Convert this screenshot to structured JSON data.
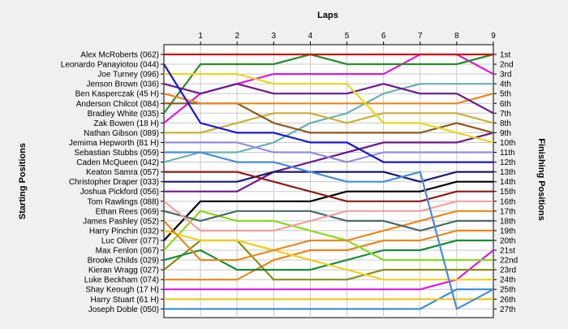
{
  "chart_data": {
    "type": "line",
    "title": "Laps",
    "ylabel_left": "Starting Positions",
    "ylabel_right": "Finishing Positions",
    "x": [
      0,
      1,
      2,
      3,
      4,
      5,
      6,
      7,
      8,
      9
    ],
    "x_tick_labels": [
      "1",
      "2",
      "3",
      "4",
      "5",
      "6",
      "7",
      "8",
      "9"
    ],
    "ylim": [
      1,
      27
    ],
    "y_inverted": true,
    "grid": true,
    "finishing_positions": [
      "1st",
      "2nd",
      "3rd",
      "4th",
      "5th",
      "6th",
      "7th",
      "8th",
      "9th",
      "10th",
      "11th",
      "12th",
      "13th",
      "14th",
      "15th",
      "16th",
      "17th",
      "18th",
      "19th",
      "20th",
      "21st",
      "22nd",
      "23rd",
      "24th",
      "25th",
      "26th",
      "27th"
    ],
    "series": [
      {
        "name": "Alex McRoberts (062)",
        "color": "#cc1111",
        "values": [
          1,
          1,
          1,
          1,
          1,
          1,
          1,
          1,
          1,
          1
        ]
      },
      {
        "name": "Leonardo Panayiotou (044)",
        "color": "#1a1acc",
        "values": [
          2,
          8,
          9,
          9,
          10,
          10,
          12,
          12,
          12,
          12
        ]
      },
      {
        "name": "Joe Turney (096)",
        "color": "#e8d81c",
        "values": [
          3,
          3,
          3,
          4,
          4,
          4,
          8,
          8,
          9,
          10
        ]
      },
      {
        "name": "Jenson Brown (036)",
        "color": "#6a1a8c",
        "values": [
          4,
          5,
          4,
          5,
          5,
          5,
          4,
          5,
          5,
          7
        ]
      },
      {
        "name": "Ben Kasperczak (45 H)",
        "color": "#e8881c",
        "values": [
          5,
          6,
          6,
          6,
          6,
          6,
          6,
          6,
          6,
          5
        ]
      },
      {
        "name": "Anderson Chilcot (084)",
        "color": "#8c5a1a",
        "values": [
          6,
          6,
          6,
          8,
          9,
          9,
          9,
          9,
          8,
          9
        ]
      },
      {
        "name": "Bradley White (035)",
        "color": "#2a8c2a",
        "values": [
          7,
          2,
          2,
          2,
          1,
          2,
          2,
          2,
          2,
          1
        ]
      },
      {
        "name": "Zak Bowen (18 H)",
        "color": "#d81cd8",
        "values": [
          8,
          5,
          4,
          3,
          3,
          3,
          3,
          1,
          1,
          3
        ]
      },
      {
        "name": "Nathan Gibson (089)",
        "color": "#c8b038",
        "values": [
          9,
          9,
          8,
          7,
          7,
          8,
          7,
          7,
          7,
          8
        ]
      },
      {
        "name": "Jemima Hepworth (81 H)",
        "color": "#9090d8",
        "values": [
          10,
          10,
          10,
          11,
          11,
          12,
          11,
          11,
          11,
          11
        ]
      },
      {
        "name": "Sebastian Stubbs (059)",
        "color": "#4a8cd8",
        "values": [
          11,
          11,
          12,
          12,
          13,
          14,
          14,
          13,
          27,
          25
        ]
      },
      {
        "name": "Caden McQueen (042)",
        "color": "#6ab0b0",
        "values": [
          12,
          11,
          11,
          10,
          8,
          7,
          5,
          4,
          4,
          4
        ]
      },
      {
        "name": "Keaton Samra (057)",
        "color": "#8c1a1a",
        "values": [
          13,
          13,
          13,
          14,
          15,
          16,
          16,
          16,
          15,
          15
        ]
      },
      {
        "name": "Christopher Draper (033)",
        "color": "#1a1a6c",
        "values": [
          14,
          14,
          14,
          13,
          13,
          13,
          13,
          14,
          13,
          13
        ]
      },
      {
        "name": "Joshua Pickford (056)",
        "color": "#6a1a8c",
        "values": [
          15,
          15,
          15,
          13,
          12,
          11,
          10,
          10,
          10,
          9
        ]
      },
      {
        "name": "Tom Rawlings (088)",
        "color": "#f0a0a0",
        "values": [
          16,
          19,
          19,
          19,
          18,
          17,
          17,
          17,
          16,
          16
        ]
      },
      {
        "name": "Ethan Rees (069)",
        "color": "#4a6a6a",
        "values": [
          17,
          18,
          17,
          17,
          17,
          18,
          18,
          19,
          18,
          18
        ]
      },
      {
        "name": "James Pashley (052)",
        "color": "#e8881c",
        "values": [
          18,
          22,
          22,
          21,
          20,
          20,
          19,
          18,
          17,
          17
        ]
      },
      {
        "name": "Harry Pinchin (032)",
        "color": "#f0d01c",
        "values": [
          19,
          20,
          20,
          21,
          22,
          23,
          24,
          24,
          24,
          24
        ]
      },
      {
        "name": "Luc Oliver (077)",
        "color": "#000000",
        "values": [
          20,
          16,
          16,
          16,
          16,
          15,
          15,
          15,
          14,
          14
        ]
      },
      {
        "name": "Max Fenlon (067)",
        "color": "#8cd81c",
        "values": [
          21,
          17,
          18,
          18,
          19,
          20,
          22,
          22,
          22,
          22
        ]
      },
      {
        "name": "Brooke Childs (029)",
        "color": "#1a8c3a",
        "values": [
          22,
          21,
          23,
          23,
          23,
          22,
          21,
          21,
          20,
          20
        ]
      },
      {
        "name": "Kieran Wragg (027)",
        "color": "#8c8c1a",
        "values": [
          23,
          20,
          20,
          24,
          24,
          24,
          23,
          23,
          23,
          23
        ]
      },
      {
        "name": "Luke Beckham (074)",
        "color": "#e8881c",
        "values": [
          24,
          24,
          24,
          22,
          21,
          21,
          20,
          20,
          19,
          19
        ]
      },
      {
        "name": "Shay Keough (17 H)",
        "color": "#d81cd8",
        "values": [
          25,
          25,
          25,
          25,
          25,
          25,
          25,
          25,
          24,
          21
        ]
      },
      {
        "name": "Harry Stuart (61 H)",
        "color": "#e8c81c",
        "values": [
          26,
          26,
          26,
          26,
          26,
          26,
          26,
          26,
          26,
          26
        ]
      },
      {
        "name": "Joseph Doble (050)",
        "color": "#3a8cd8",
        "values": [
          27,
          27,
          27,
          27,
          27,
          27,
          27,
          27,
          25,
          25
        ]
      }
    ]
  }
}
